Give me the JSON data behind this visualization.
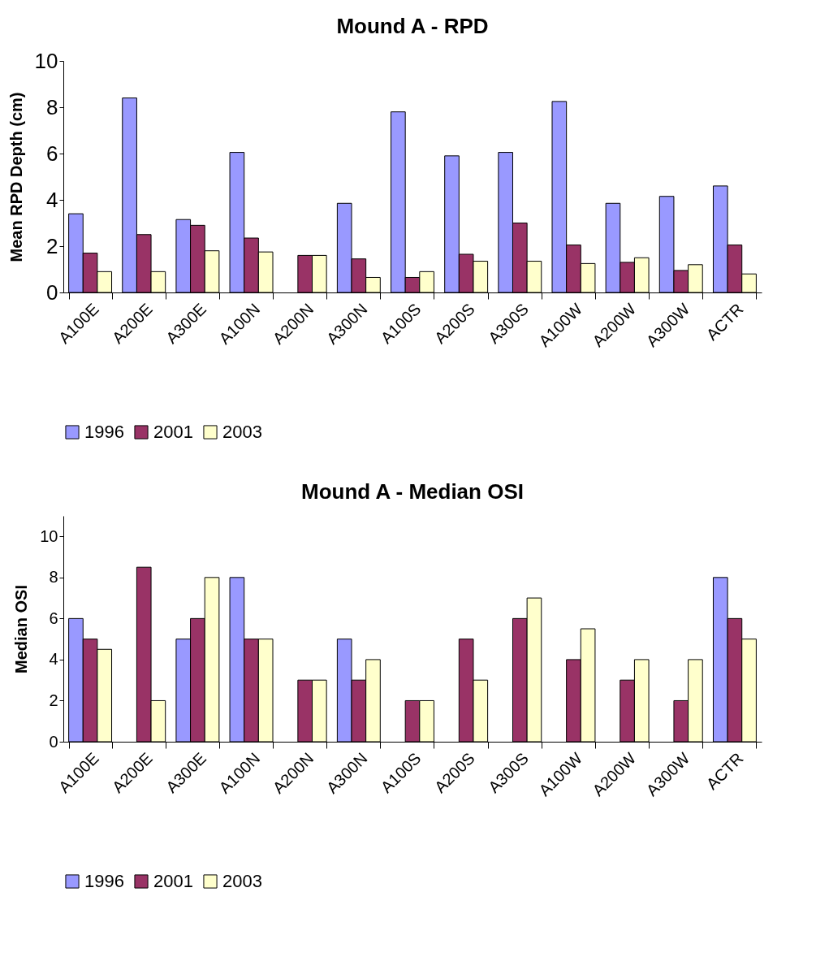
{
  "chart_data": [
    {
      "type": "bar",
      "title": "Mound A - RPD",
      "ylabel": "Mean RPD Depth (cm)",
      "categories": [
        "A100E",
        "A200E",
        "A300E",
        "A100N",
        "A200N",
        "A300N",
        "A100S",
        "A200S",
        "A300S",
        "A100W",
        "A200W",
        "A300W",
        "ACTR"
      ],
      "series": [
        {
          "name": "1996",
          "color": "#9999ff",
          "values": [
            3.4,
            8.4,
            3.15,
            6.05,
            null,
            3.85,
            7.8,
            5.9,
            6.05,
            8.25,
            3.85,
            4.15,
            4.6
          ]
        },
        {
          "name": "2001",
          "color": "#993366",
          "values": [
            1.7,
            2.5,
            2.9,
            2.35,
            1.6,
            1.45,
            0.65,
            1.65,
            3.0,
            2.05,
            1.3,
            0.95,
            2.05
          ]
        },
        {
          "name": "2003",
          "color": "#ffffcc",
          "values": [
            0.9,
            0.9,
            1.8,
            1.75,
            1.6,
            0.65,
            0.9,
            1.35,
            1.35,
            1.25,
            1.5,
            1.2,
            0.8
          ]
        }
      ],
      "ylim": [
        0,
        10
      ],
      "yticks": [
        0,
        2,
        4,
        6,
        8,
        10
      ],
      "grid": false,
      "legend": "bottom"
    },
    {
      "type": "bar",
      "title": "Mound A - Median OSI",
      "ylabel": "Median OSI",
      "categories": [
        "A100E",
        "A200E",
        "A300E",
        "A100N",
        "A200N",
        "A300N",
        "A100S",
        "A200S",
        "A300S",
        "A100W",
        "A200W",
        "A300W",
        "ACTR"
      ],
      "series": [
        {
          "name": "1996",
          "color": "#9999ff",
          "values": [
            6,
            null,
            5,
            8,
            null,
            5,
            null,
            null,
            null,
            null,
            null,
            null,
            8
          ]
        },
        {
          "name": "2001",
          "color": "#993366",
          "values": [
            5,
            8.5,
            6,
            5,
            3,
            3,
            2,
            5,
            6,
            4,
            3,
            2,
            6
          ]
        },
        {
          "name": "2003",
          "color": "#ffffcc",
          "values": [
            4.5,
            2,
            8,
            5,
            3,
            4,
            2,
            3,
            7,
            5.5,
            4,
            4,
            5
          ]
        }
      ],
      "ylim": [
        0,
        11
      ],
      "yticks": [
        0,
        2,
        4,
        6,
        8,
        10
      ],
      "grid": false,
      "legend": "bottom"
    }
  ]
}
